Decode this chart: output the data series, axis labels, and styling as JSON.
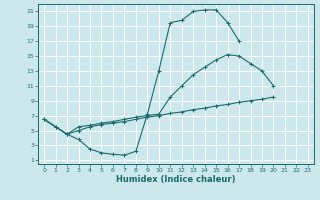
{
  "xlabel": "Humidex (Indice chaleur)",
  "bg_color": "#cce8ec",
  "grid_color": "#ffffff",
  "line_color": "#1a6b6b",
  "xlim": [
    -0.5,
    23.5
  ],
  "ylim": [
    0.5,
    22
  ],
  "xticks": [
    0,
    1,
    2,
    3,
    4,
    5,
    6,
    7,
    8,
    9,
    10,
    11,
    12,
    13,
    14,
    15,
    16,
    17,
    18,
    19,
    20,
    21,
    22,
    23
  ],
  "yticks": [
    1,
    3,
    5,
    7,
    9,
    11,
    13,
    15,
    17,
    19,
    21
  ],
  "line1_x": [
    0,
    1,
    2,
    3,
    4,
    5,
    6,
    7,
    8,
    9,
    10,
    11,
    12,
    13,
    14,
    15,
    16,
    17,
    18
  ],
  "line1_y": [
    6.5,
    5.5,
    4.5,
    3.8,
    2.5,
    2.0,
    1.8,
    1.7,
    2.2,
    7.2,
    13.0,
    19.5,
    19.8,
    21.0,
    21.2,
    21.2,
    19.5,
    17.0,
    null
  ],
  "line2_x": [
    0,
    1,
    2,
    3,
    4,
    5,
    6,
    7,
    8,
    9,
    10,
    11,
    12,
    13,
    14,
    15,
    16,
    17,
    18,
    19,
    20,
    21,
    22
  ],
  "line2_y": [
    6.5,
    5.5,
    4.5,
    5.5,
    5.7,
    6.0,
    6.2,
    6.5,
    6.8,
    7.0,
    7.2,
    9.5,
    11.0,
    12.5,
    13.5,
    14.5,
    15.2,
    15.0,
    14.0,
    13.0,
    11.0,
    null,
    null
  ],
  "line3_x": [
    0,
    1,
    2,
    3,
    4,
    5,
    6,
    7,
    8,
    9,
    10,
    11,
    12,
    13,
    14,
    15,
    16,
    17,
    18,
    19,
    20,
    21,
    22
  ],
  "line3_y": [
    6.5,
    5.5,
    4.5,
    5.0,
    5.5,
    5.8,
    6.0,
    6.2,
    6.5,
    6.8,
    7.0,
    7.3,
    7.5,
    7.8,
    8.0,
    8.3,
    8.5,
    8.8,
    9.0,
    9.2,
    9.5,
    null,
    null
  ]
}
